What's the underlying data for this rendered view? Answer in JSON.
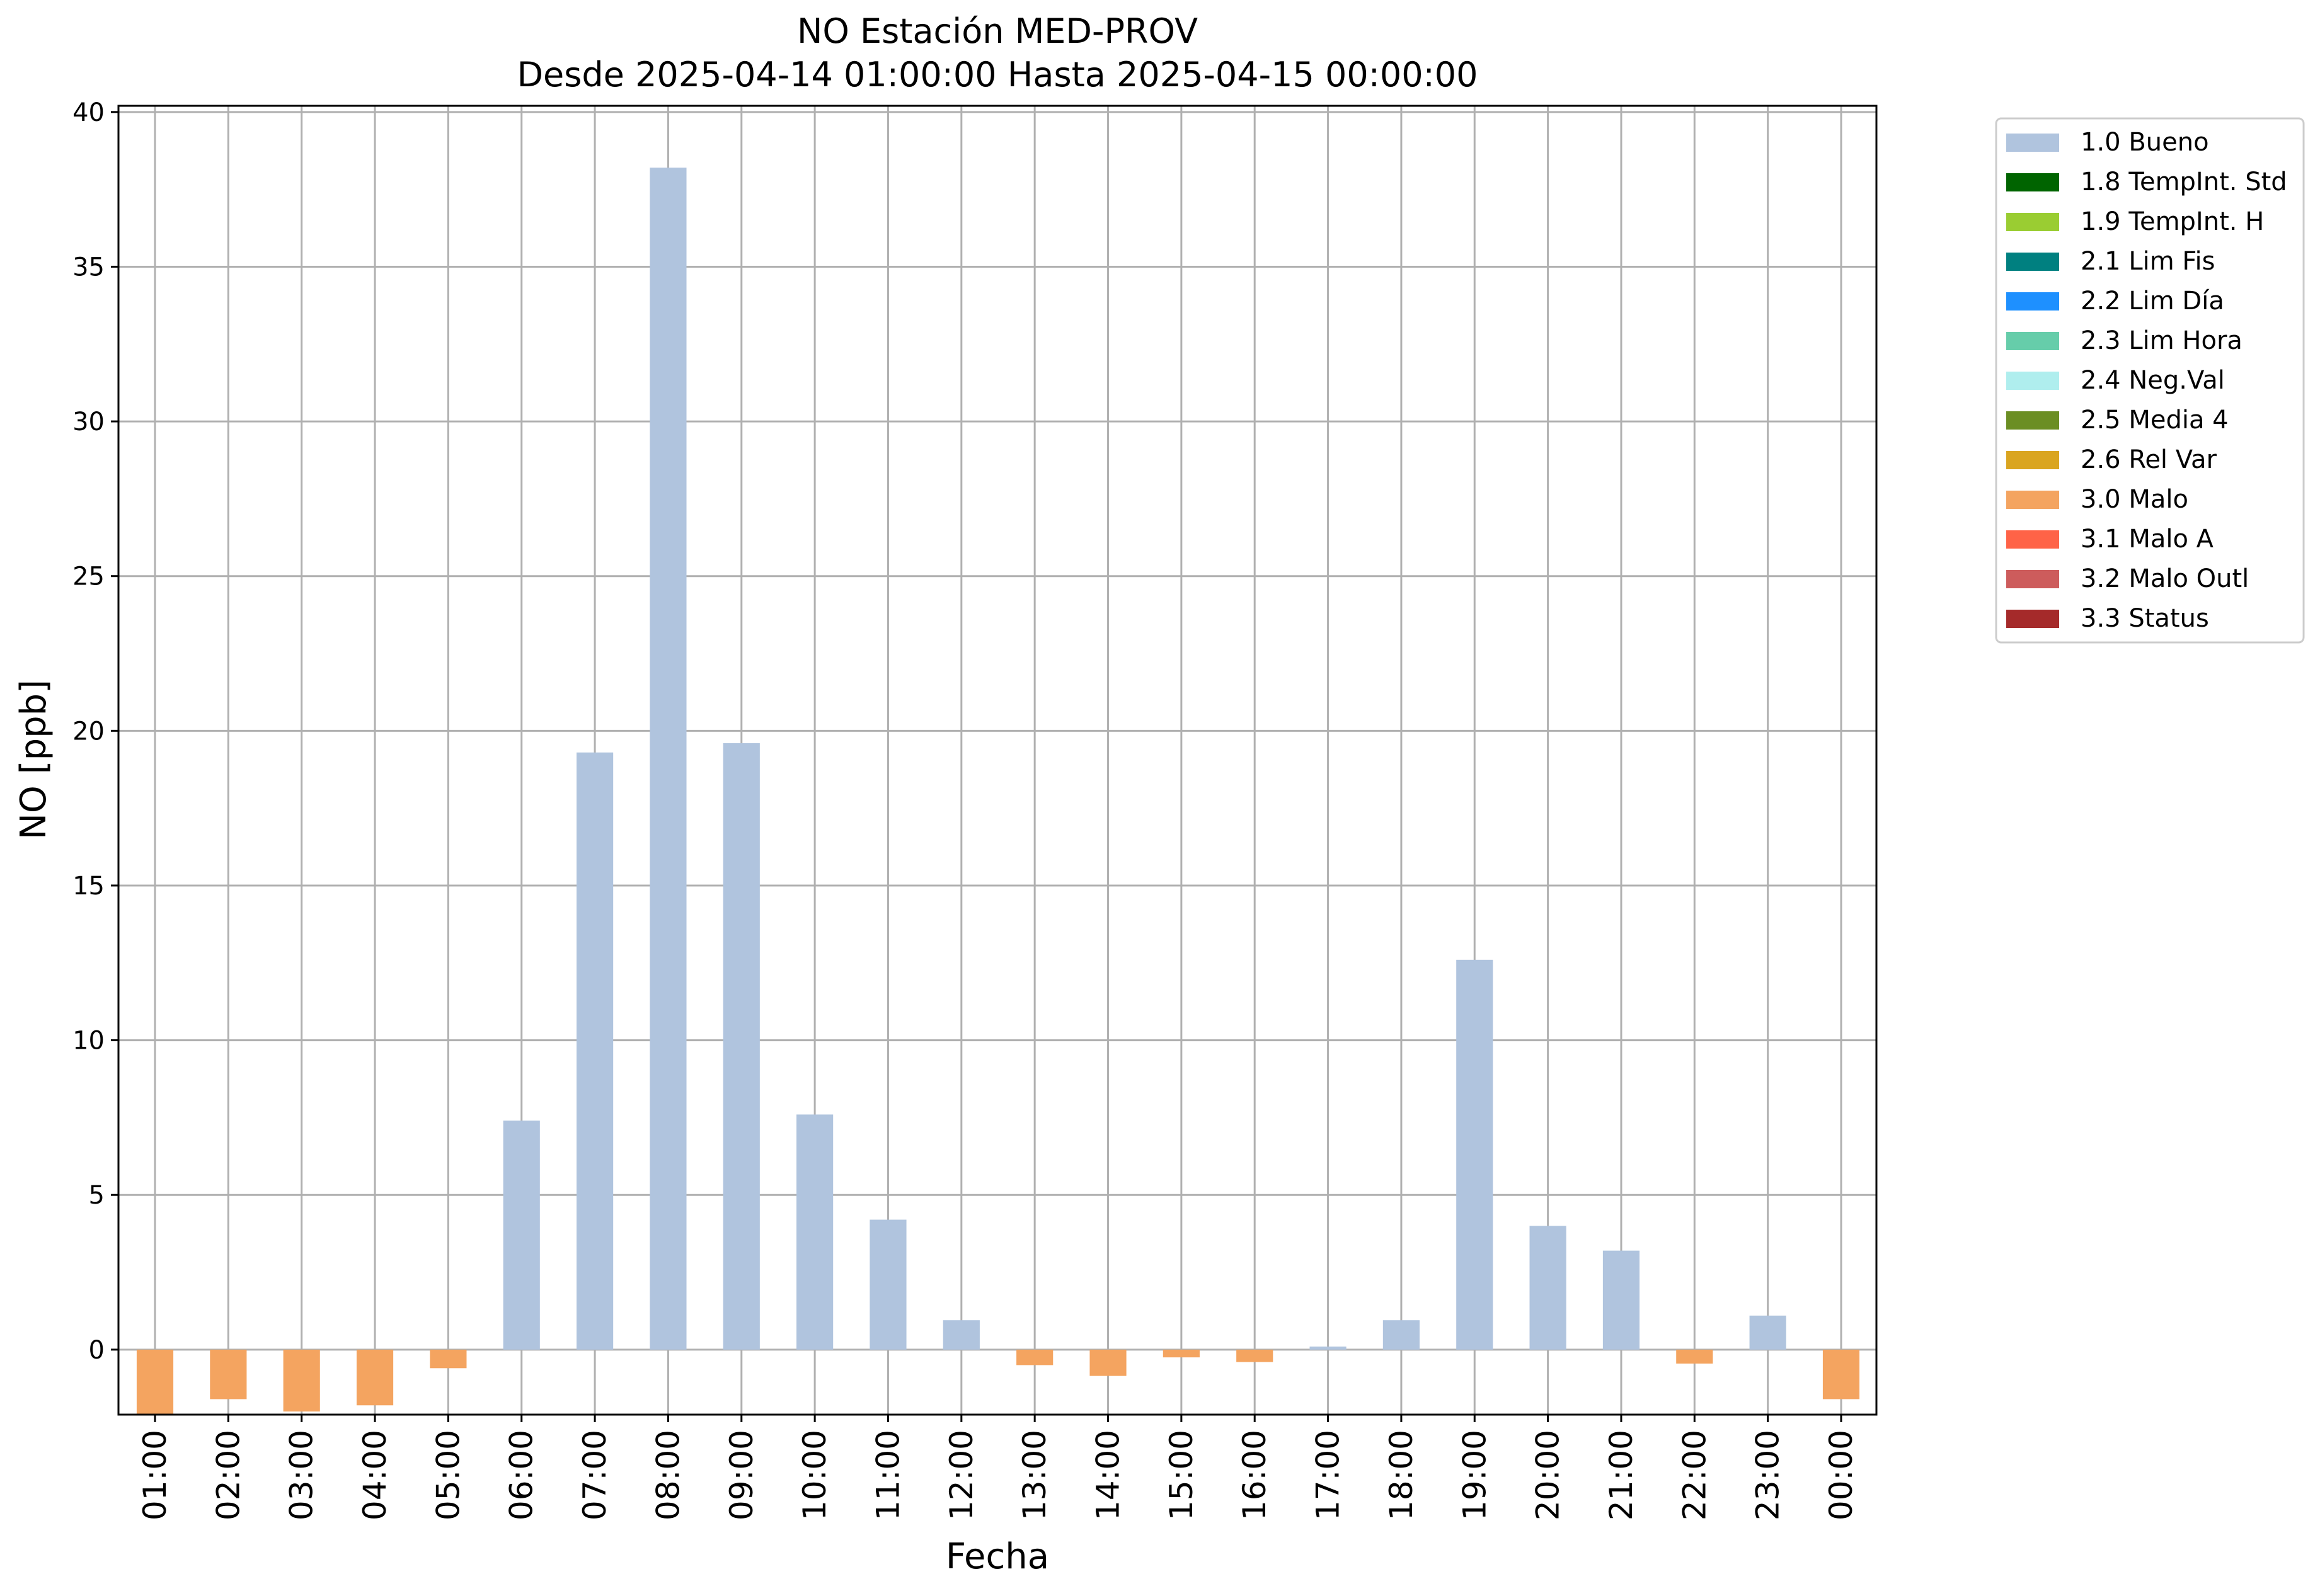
{
  "chart_data": {
    "type": "bar",
    "title": "NO Estación MED-PROV",
    "subtitle": "Desde 2025-04-14 01:00:00 Hasta 2025-04-15 00:00:00",
    "xlabel": "Fecha",
    "ylabel": "NO [ppb]",
    "ylim": [
      -2.1,
      40.2
    ],
    "yticks": [
      "0",
      "5",
      "10",
      "15",
      "20",
      "25",
      "30",
      "35",
      "40"
    ],
    "grid": true,
    "legend_position": "outside-top-right",
    "categories": [
      "01:00",
      "02:00",
      "03:00",
      "04:00",
      "05:00",
      "06:00",
      "07:00",
      "08:00",
      "09:00",
      "10:00",
      "11:00",
      "12:00",
      "13:00",
      "14:00",
      "15:00",
      "16:00",
      "17:00",
      "18:00",
      "19:00",
      "20:00",
      "21:00",
      "22:00",
      "23:00",
      "00:00"
    ],
    "values": [
      -2.1,
      -1.6,
      -2.0,
      -1.8,
      -0.6,
      7.4,
      19.3,
      38.2,
      19.6,
      7.6,
      4.2,
      0.95,
      -0.5,
      -0.85,
      -0.25,
      -0.4,
      0.1,
      0.95,
      12.6,
      4.0,
      3.2,
      -0.45,
      1.1,
      -1.6
    ],
    "value_quality": [
      "3.0 Malo",
      "3.0 Malo",
      "3.0 Malo",
      "3.0 Malo",
      "3.0 Malo",
      "1.0 Bueno",
      "1.0 Bueno",
      "1.0 Bueno",
      "1.0 Bueno",
      "1.0 Bueno",
      "1.0 Bueno",
      "1.0 Bueno",
      "3.0 Malo",
      "3.0 Malo",
      "3.0 Malo",
      "3.0 Malo",
      "1.0 Bueno",
      "1.0 Bueno",
      "1.0 Bueno",
      "1.0 Bueno",
      "1.0 Bueno",
      "3.0 Malo",
      "1.0 Bueno",
      "3.0 Malo"
    ],
    "legend": [
      {
        "label": "1.0 Bueno",
        "color": "#b0c4de"
      },
      {
        "label": "1.8 TempInt. Std",
        "color": "#006400"
      },
      {
        "label": "1.9 TempInt. H",
        "color": "#9acd32"
      },
      {
        "label": "2.1 Lim Fis",
        "color": "#008080"
      },
      {
        "label": "2.2 Lim Día",
        "color": "#1e90ff"
      },
      {
        "label": "2.3 Lim Hora",
        "color": "#66cdaa"
      },
      {
        "label": "2.4 Neg.Val",
        "color": "#afeeee"
      },
      {
        "label": "2.5 Media 4",
        "color": "#6b8e23"
      },
      {
        "label": "2.6 Rel Var",
        "color": "#daa520"
      },
      {
        "label": "3.0 Malo",
        "color": "#f4a460"
      },
      {
        "label": "3.1 Malo A",
        "color": "#ff6347"
      },
      {
        "label": "3.2 Malo Outl",
        "color": "#cd5c5c"
      },
      {
        "label": "3.3 Status",
        "color": "#a52a2a"
      }
    ]
  }
}
